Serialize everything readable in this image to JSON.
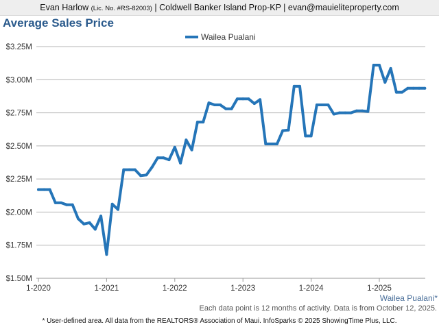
{
  "header": {
    "agent_name": "Evan Harlow",
    "license": "(Lic. No. #RS-82003)",
    "rest": "| Coldwell Banker Island Prop-KP | evan@mauieliteproperty.com"
  },
  "title": "Average Sales Price",
  "area_label": "Wailea Pualani*",
  "note": "Each data point is 12 months of activity. Data is from October 12, 2025.",
  "footer": "* User-defined area. All data from the REALTORS® Association of Maui. InfoSparks © 2025 ShowingTime Plus, LLC.",
  "colors": {
    "series": "#2575b8",
    "title": "#2a5a8c",
    "grid": "#b4b4b4"
  },
  "chart_data": {
    "type": "line",
    "title": "Average Sales Price",
    "xlabel": "",
    "ylabel": "",
    "legend_position": "top-center",
    "grid": true,
    "ylim": [
      1500000,
      3250000
    ],
    "y_ticks": [
      {
        "value": 1500000,
        "label": "$1.50M"
      },
      {
        "value": 1750000,
        "label": "$1.75M"
      },
      {
        "value": 2000000,
        "label": "$2.00M"
      },
      {
        "value": 2250000,
        "label": "$2.25M"
      },
      {
        "value": 2500000,
        "label": "$2.50M"
      },
      {
        "value": 2750000,
        "label": "$2.75M"
      },
      {
        "value": 3000000,
        "label": "$3.00M"
      },
      {
        "value": 3250000,
        "label": "$3.25M"
      }
    ],
    "x_ticks": [
      "1-2020",
      "1-2021",
      "1-2022",
      "1-2023",
      "1-2024",
      "1-2025"
    ],
    "x_range": [
      "2020-01",
      "2025-09"
    ],
    "series": [
      {
        "name": "Wailea Pualani",
        "x": [
          "2020-01",
          "2020-02",
          "2020-03",
          "2020-04",
          "2020-05",
          "2020-06",
          "2020-07",
          "2020-08",
          "2020-09",
          "2020-10",
          "2020-11",
          "2020-12",
          "2021-01",
          "2021-02",
          "2021-03",
          "2021-04",
          "2021-05",
          "2021-06",
          "2021-07",
          "2021-08",
          "2021-09",
          "2021-10",
          "2021-11",
          "2021-12",
          "2022-01",
          "2022-02",
          "2022-03",
          "2022-04",
          "2022-05",
          "2022-06",
          "2022-07",
          "2022-08",
          "2022-09",
          "2022-10",
          "2022-11",
          "2022-12",
          "2023-01",
          "2023-02",
          "2023-03",
          "2023-04",
          "2023-05",
          "2023-06",
          "2023-07",
          "2023-08",
          "2023-09",
          "2023-10",
          "2023-11",
          "2023-12",
          "2024-01",
          "2024-02",
          "2024-03",
          "2024-04",
          "2024-05",
          "2024-06",
          "2024-07",
          "2024-08",
          "2024-09",
          "2024-10",
          "2024-11",
          "2024-12",
          "2025-01",
          "2025-02",
          "2025-03",
          "2025-04",
          "2025-05",
          "2025-06",
          "2025-07",
          "2025-08",
          "2025-09"
        ],
        "values": [
          2170000,
          2170000,
          2170000,
          2070000,
          2070000,
          2055000,
          2055000,
          1950000,
          1910000,
          1920000,
          1870000,
          1970000,
          1680000,
          2060000,
          2020000,
          2320000,
          2320000,
          2320000,
          2275000,
          2280000,
          2340000,
          2410000,
          2410000,
          2395000,
          2490000,
          2370000,
          2545000,
          2470000,
          2680000,
          2680000,
          2825000,
          2810000,
          2810000,
          2780000,
          2780000,
          2855000,
          2855000,
          2855000,
          2820000,
          2850000,
          2515000,
          2515000,
          2515000,
          2615000,
          2620000,
          2950000,
          2950000,
          2575000,
          2575000,
          2810000,
          2810000,
          2810000,
          2740000,
          2750000,
          2750000,
          2750000,
          2765000,
          2765000,
          2760000,
          3110000,
          3110000,
          2980000,
          3085000,
          2905000,
          2905000,
          2935000,
          2935000,
          2935000,
          2935000
        ]
      }
    ]
  }
}
